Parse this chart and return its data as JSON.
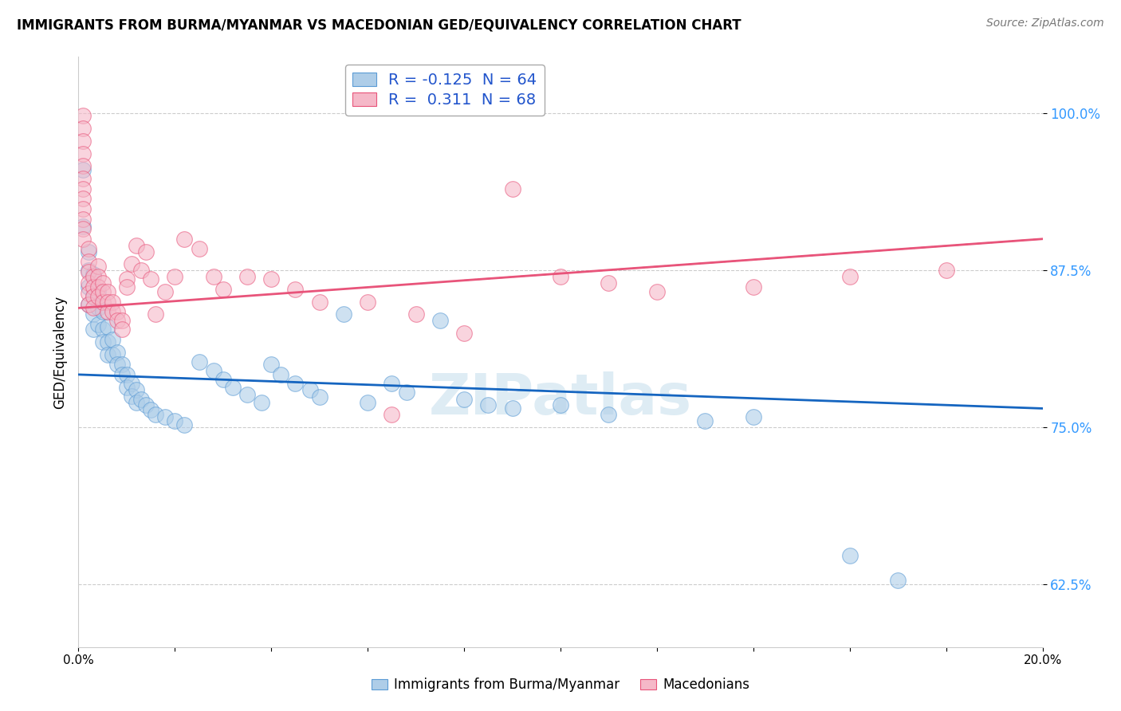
{
  "title": "IMMIGRANTS FROM BURMA/MYANMAR VS MACEDONIAN GED/EQUIVALENCY CORRELATION CHART",
  "source": "Source: ZipAtlas.com",
  "ylabel": "GED/Equivalency",
  "ytick_vals": [
    0.625,
    0.75,
    0.875,
    1.0
  ],
  "ytick_labels": [
    "62.5%",
    "75.0%",
    "87.5%",
    "100.0%"
  ],
  "xmin": 0.0,
  "xmax": 0.2,
  "ymin": 0.575,
  "ymax": 1.045,
  "blue_color": "#aecde8",
  "pink_color": "#f5b8c8",
  "blue_edge_color": "#5b9bd5",
  "pink_edge_color": "#e8547a",
  "blue_line_color": "#1565c0",
  "pink_line_color": "#e8547a",
  "blue_N": 64,
  "pink_N": 68,
  "blue_R": -0.125,
  "pink_R": 0.311,
  "watermark": "ZIPatlas",
  "blue_points": [
    [
      0.001,
      0.955
    ],
    [
      0.001,
      0.91
    ],
    [
      0.002,
      0.89
    ],
    [
      0.002,
      0.875
    ],
    [
      0.002,
      0.862
    ],
    [
      0.002,
      0.848
    ],
    [
      0.003,
      0.872
    ],
    [
      0.003,
      0.855
    ],
    [
      0.003,
      0.84
    ],
    [
      0.003,
      0.828
    ],
    [
      0.004,
      0.858
    ],
    [
      0.004,
      0.845
    ],
    [
      0.004,
      0.832
    ],
    [
      0.005,
      0.842
    ],
    [
      0.005,
      0.828
    ],
    [
      0.005,
      0.818
    ],
    [
      0.006,
      0.83
    ],
    [
      0.006,
      0.818
    ],
    [
      0.006,
      0.808
    ],
    [
      0.007,
      0.82
    ],
    [
      0.007,
      0.808
    ],
    [
      0.008,
      0.81
    ],
    [
      0.008,
      0.8
    ],
    [
      0.009,
      0.8
    ],
    [
      0.009,
      0.792
    ],
    [
      0.01,
      0.792
    ],
    [
      0.01,
      0.782
    ],
    [
      0.011,
      0.785
    ],
    [
      0.011,
      0.775
    ],
    [
      0.012,
      0.78
    ],
    [
      0.012,
      0.77
    ],
    [
      0.013,
      0.772
    ],
    [
      0.014,
      0.768
    ],
    [
      0.015,
      0.764
    ],
    [
      0.016,
      0.76
    ],
    [
      0.018,
      0.758
    ],
    [
      0.02,
      0.755
    ],
    [
      0.022,
      0.752
    ],
    [
      0.025,
      0.802
    ],
    [
      0.028,
      0.795
    ],
    [
      0.03,
      0.788
    ],
    [
      0.032,
      0.782
    ],
    [
      0.035,
      0.776
    ],
    [
      0.038,
      0.77
    ],
    [
      0.04,
      0.8
    ],
    [
      0.042,
      0.792
    ],
    [
      0.045,
      0.785
    ],
    [
      0.048,
      0.78
    ],
    [
      0.05,
      0.774
    ],
    [
      0.055,
      0.84
    ],
    [
      0.06,
      0.77
    ],
    [
      0.065,
      0.785
    ],
    [
      0.068,
      0.778
    ],
    [
      0.075,
      0.835
    ],
    [
      0.08,
      0.772
    ],
    [
      0.085,
      0.768
    ],
    [
      0.09,
      0.765
    ],
    [
      0.1,
      0.768
    ],
    [
      0.11,
      0.76
    ],
    [
      0.13,
      0.755
    ],
    [
      0.14,
      0.758
    ],
    [
      0.16,
      0.648
    ],
    [
      0.17,
      0.628
    ]
  ],
  "pink_points": [
    [
      0.001,
      0.998
    ],
    [
      0.001,
      0.988
    ],
    [
      0.001,
      0.978
    ],
    [
      0.001,
      0.968
    ],
    [
      0.001,
      0.958
    ],
    [
      0.001,
      0.948
    ],
    [
      0.001,
      0.94
    ],
    [
      0.001,
      0.932
    ],
    [
      0.001,
      0.924
    ],
    [
      0.001,
      0.916
    ],
    [
      0.001,
      0.908
    ],
    [
      0.001,
      0.9
    ],
    [
      0.002,
      0.892
    ],
    [
      0.002,
      0.882
    ],
    [
      0.002,
      0.874
    ],
    [
      0.002,
      0.865
    ],
    [
      0.002,
      0.857
    ],
    [
      0.002,
      0.848
    ],
    [
      0.003,
      0.87
    ],
    [
      0.003,
      0.862
    ],
    [
      0.003,
      0.854
    ],
    [
      0.003,
      0.845
    ],
    [
      0.004,
      0.878
    ],
    [
      0.004,
      0.87
    ],
    [
      0.004,
      0.862
    ],
    [
      0.004,
      0.854
    ],
    [
      0.005,
      0.865
    ],
    [
      0.005,
      0.858
    ],
    [
      0.005,
      0.85
    ],
    [
      0.006,
      0.858
    ],
    [
      0.006,
      0.85
    ],
    [
      0.006,
      0.842
    ],
    [
      0.007,
      0.85
    ],
    [
      0.007,
      0.842
    ],
    [
      0.008,
      0.842
    ],
    [
      0.008,
      0.835
    ],
    [
      0.009,
      0.835
    ],
    [
      0.009,
      0.828
    ],
    [
      0.01,
      0.868
    ],
    [
      0.01,
      0.862
    ],
    [
      0.011,
      0.88
    ],
    [
      0.012,
      0.895
    ],
    [
      0.013,
      0.875
    ],
    [
      0.014,
      0.89
    ],
    [
      0.015,
      0.868
    ],
    [
      0.016,
      0.84
    ],
    [
      0.018,
      0.858
    ],
    [
      0.02,
      0.87
    ],
    [
      0.022,
      0.9
    ],
    [
      0.025,
      0.892
    ],
    [
      0.028,
      0.87
    ],
    [
      0.03,
      0.86
    ],
    [
      0.035,
      0.87
    ],
    [
      0.04,
      0.868
    ],
    [
      0.045,
      0.86
    ],
    [
      0.05,
      0.85
    ],
    [
      0.06,
      0.85
    ],
    [
      0.065,
      0.76
    ],
    [
      0.07,
      0.84
    ],
    [
      0.08,
      0.825
    ],
    [
      0.09,
      0.94
    ],
    [
      0.1,
      0.87
    ],
    [
      0.11,
      0.865
    ],
    [
      0.12,
      0.858
    ],
    [
      0.14,
      0.862
    ],
    [
      0.16,
      0.87
    ],
    [
      0.18,
      0.875
    ]
  ]
}
